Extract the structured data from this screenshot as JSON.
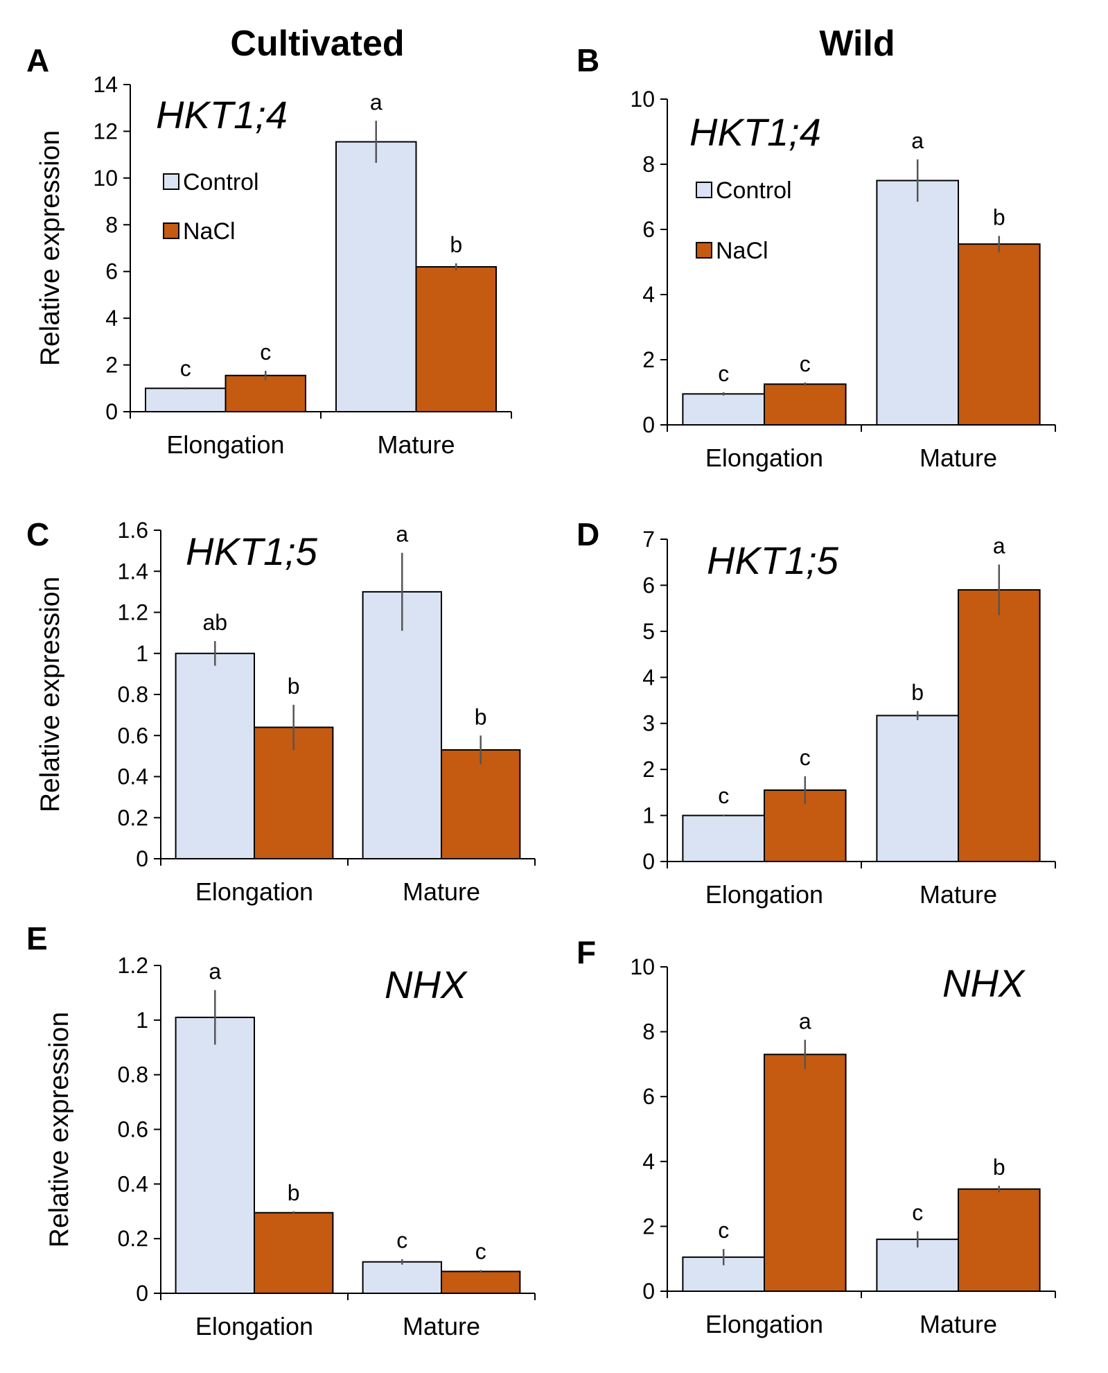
{
  "figure": {
    "column_titles": [
      "Cultivated",
      "Wild"
    ]
  },
  "legend_labels": [
    "Control",
    "NaCl"
  ],
  "colors": {
    "control": "#dae3f3",
    "nacl": "#c55a11",
    "axis": "#000000",
    "error": "#555555"
  },
  "chart_data": [
    {
      "panel": "A",
      "type": "bar",
      "title": "HKT1;4",
      "ylabel": "Relative expression",
      "xlabel": "",
      "categories": [
        "Elongation",
        "Mature"
      ],
      "ylim": [
        0,
        14
      ],
      "yticks": [
        0,
        2,
        4,
        6,
        8,
        10,
        12,
        14
      ],
      "tick_labels": [
        "0",
        "2",
        "4",
        "6",
        "8",
        "10",
        "12",
        "14"
      ],
      "legend": true,
      "series": [
        {
          "name": "Control",
          "values": [
            1.0,
            11.55
          ],
          "errors": [
            0.05,
            0.9
          ],
          "letters": [
            "c",
            "a"
          ]
        },
        {
          "name": "NaCl",
          "values": [
            1.55,
            6.2
          ],
          "errors": [
            0.2,
            0.15
          ],
          "letters": [
            "c",
            "b"
          ]
        }
      ]
    },
    {
      "panel": "B",
      "type": "bar",
      "title": "HKT1;4",
      "ylabel": "",
      "xlabel": "",
      "categories": [
        "Elongation",
        "Mature"
      ],
      "ylim": [
        0,
        10
      ],
      "yticks": [
        0,
        2,
        4,
        6,
        8,
        10
      ],
      "tick_labels": [
        "0",
        "2",
        "4",
        "6",
        "8",
        "10"
      ],
      "legend": true,
      "series": [
        {
          "name": "Control",
          "values": [
            0.95,
            7.5
          ],
          "errors": [
            0.05,
            0.65
          ],
          "letters": [
            "c",
            "a"
          ]
        },
        {
          "name": "NaCl",
          "values": [
            1.25,
            5.55
          ],
          "errors": [
            0.05,
            0.25
          ],
          "letters": [
            "c",
            "b"
          ]
        }
      ]
    },
    {
      "panel": "C",
      "type": "bar",
      "title": "HKT1;5",
      "ylabel": "Relative expression",
      "xlabel": "",
      "categories": [
        "Elongation",
        "Mature"
      ],
      "ylim": [
        0,
        1.6
      ],
      "yticks": [
        0,
        0.2,
        0.4,
        0.6,
        0.8,
        1.0,
        1.2,
        1.4,
        1.6
      ],
      "tick_labels": [
        "0",
        "0.2",
        "0.4",
        "0.6",
        "0.8",
        "1",
        "1.2",
        "1.4",
        "1.6"
      ],
      "legend": false,
      "series": [
        {
          "name": "Control",
          "values": [
            1.0,
            1.3
          ],
          "errors": [
            0.06,
            0.19
          ],
          "letters": [
            "ab",
            "a"
          ]
        },
        {
          "name": "NaCl",
          "values": [
            0.64,
            0.53
          ],
          "errors": [
            0.11,
            0.07
          ],
          "letters": [
            "b",
            "b"
          ]
        }
      ]
    },
    {
      "panel": "D",
      "type": "bar",
      "title": "HKT1;5",
      "ylabel": "",
      "xlabel": "",
      "categories": [
        "Elongation",
        "Mature"
      ],
      "ylim": [
        0,
        7
      ],
      "yticks": [
        0,
        1,
        2,
        3,
        4,
        5,
        6,
        7
      ],
      "tick_labels": [
        "0",
        "1",
        "2",
        "3",
        "4",
        "5",
        "6",
        "7"
      ],
      "legend": false,
      "series": [
        {
          "name": "Control",
          "values": [
            1.0,
            3.17
          ],
          "errors": [
            0.02,
            0.1
          ],
          "letters": [
            "c",
            "b"
          ]
        },
        {
          "name": "NaCl",
          "values": [
            1.55,
            5.9
          ],
          "errors": [
            0.3,
            0.55
          ],
          "letters": [
            "c",
            "a"
          ]
        }
      ]
    },
    {
      "panel": "E",
      "type": "bar",
      "title": "NHX",
      "ylabel": "Relative expression",
      "xlabel": "",
      "categories": [
        "Elongation",
        "Mature"
      ],
      "ylim": [
        0,
        1.2
      ],
      "yticks": [
        0,
        0.2,
        0.4,
        0.6,
        0.8,
        1.0,
        1.2
      ],
      "tick_labels": [
        "0",
        "0.2",
        "0.4",
        "0.6",
        "0.8",
        "1",
        "1.2"
      ],
      "legend": false,
      "series": [
        {
          "name": "Control",
          "values": [
            1.01,
            0.115
          ],
          "errors": [
            0.1,
            0.01
          ],
          "letters": [
            "a",
            "c"
          ]
        },
        {
          "name": "NaCl",
          "values": [
            0.295,
            0.08
          ],
          "errors": [
            0.005,
            0.005
          ],
          "letters": [
            "b",
            "c"
          ]
        }
      ]
    },
    {
      "panel": "F",
      "type": "bar",
      "title": "NHX",
      "ylabel": "",
      "xlabel": "",
      "categories": [
        "Elongation",
        "Mature"
      ],
      "ylim": [
        0,
        10
      ],
      "yticks": [
        0,
        2,
        4,
        6,
        8,
        10
      ],
      "tick_labels": [
        "0",
        "2",
        "4",
        "6",
        "8",
        "10"
      ],
      "legend": false,
      "series": [
        {
          "name": "Control",
          "values": [
            1.05,
            1.6
          ],
          "errors": [
            0.25,
            0.25
          ],
          "letters": [
            "c",
            "c"
          ]
        },
        {
          "name": "NaCl",
          "values": [
            7.3,
            3.15
          ],
          "errors": [
            0.45,
            0.1
          ],
          "letters": [
            "a",
            "b"
          ]
        }
      ]
    }
  ]
}
